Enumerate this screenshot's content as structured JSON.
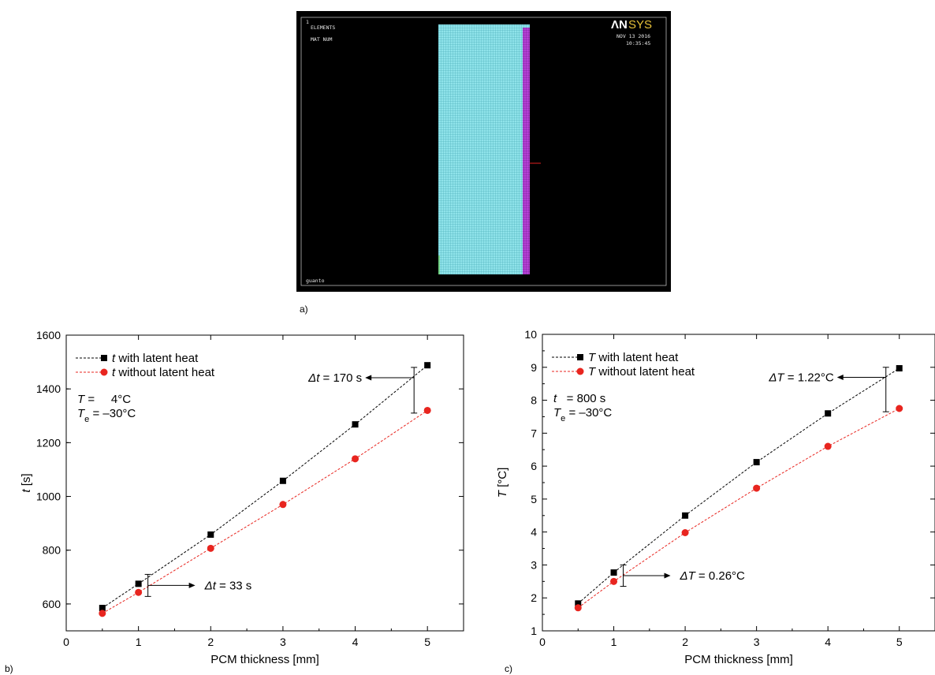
{
  "figure": {
    "panel_a_label": "a)",
    "panel_b_label": "b)",
    "panel_c_label": "c)"
  },
  "fem": {
    "frame_number": "1",
    "line1": "ELEMENTS",
    "line2": "MAT  NUM",
    "logo_part1": "ΛN",
    "logo_part2": "SYS",
    "date": "NOV 13 2016",
    "time": "10:35:45",
    "caption": "guanto",
    "colors": {
      "background": "#000000",
      "mesh_main": "#8fe3ea",
      "mesh_edge": "#b63fd6",
      "logo": "#e8c23a"
    }
  },
  "chart_data": [
    {
      "type": "line",
      "x": [
        0.5,
        1,
        2,
        3,
        4,
        5
      ],
      "series": [
        {
          "name": "t with latent heat",
          "name_symbol": "t",
          "name_rest": " with latent heat",
          "values": [
            585,
            675,
            858,
            1058,
            1268,
            1488
          ],
          "color": "#000000",
          "marker": "square"
        },
        {
          "name": "t without latent heat",
          "name_symbol": "t",
          "name_rest": " without latent heat",
          "values": [
            565,
            643,
            807,
            970,
            1140,
            1320
          ],
          "color": "#e8251f",
          "marker": "circle"
        }
      ],
      "xlabel": "PCM thickness [mm]",
      "ylabel_sym": "t",
      "ylabel_unit": " [s]",
      "xlim": [
        0,
        5.5
      ],
      "ylim": [
        500,
        1600
      ],
      "xticks": [
        0,
        1,
        2,
        3,
        4,
        5
      ],
      "yticks": [
        600,
        800,
        1000,
        1200,
        1400,
        1600
      ],
      "legend_position": "top-left",
      "grid": false,
      "conditions": [
        {
          "sym": "T",
          "sub": "",
          "value": " =     4°C"
        },
        {
          "sym": "T",
          "sub": "e",
          "value": " = –30°C"
        }
      ],
      "annotations": [
        {
          "text_sym": "Δt",
          "text_value": " = 170 s",
          "x": 5,
          "y_low": 1310,
          "y_high": 1480
        },
        {
          "text_sym": "Δt",
          "text_value": " = 33 s",
          "x": 1,
          "y_low": 628,
          "y_high": 710
        }
      ]
    },
    {
      "type": "line",
      "x": [
        0.5,
        1,
        2,
        3,
        4,
        5
      ],
      "series": [
        {
          "name": "T with latent heat",
          "name_symbol": "T",
          "name_rest": " with latent heat",
          "values": [
            1.83,
            2.77,
            4.5,
            6.12,
            7.6,
            8.97
          ],
          "color": "#000000",
          "marker": "square"
        },
        {
          "name": "T without latent heat",
          "name_symbol": "T",
          "name_rest": " without latent heat",
          "values": [
            1.7,
            2.5,
            3.98,
            5.33,
            6.6,
            7.75
          ],
          "color": "#e8251f",
          "marker": "circle"
        }
      ],
      "xlabel": "PCM thickness [mm]",
      "ylabel_sym": "T",
      "ylabel_unit": " [°C]",
      "xlim": [
        0,
        5.5
      ],
      "ylim": [
        1,
        10
      ],
      "xticks": [
        0,
        1,
        2,
        3,
        4,
        5
      ],
      "yticks": [
        1,
        2,
        3,
        4,
        5,
        6,
        7,
        8,
        9,
        10
      ],
      "legend_position": "top-left",
      "grid": false,
      "conditions": [
        {
          "sym": "t",
          "sub": "",
          "value": "   = 800 s"
        },
        {
          "sym": "T",
          "sub": "e",
          "value": " = –30°C"
        }
      ],
      "annotations": [
        {
          "text_sym": "ΔT",
          "text_value": " = 1.22°C",
          "x": 5,
          "y_low": 7.65,
          "y_high": 9.0
        },
        {
          "text_sym": "ΔT",
          "text_value": " = 0.26°C",
          "x": 1,
          "y_low": 2.35,
          "y_high": 3.0
        }
      ]
    }
  ]
}
